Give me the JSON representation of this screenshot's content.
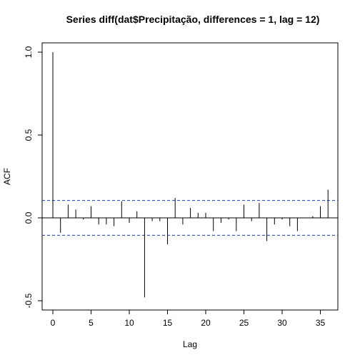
{
  "chart_data": {
    "type": "bar",
    "title": "Series  diff(dat$Precipitação, differences = 1, lag = 12)",
    "xlabel": "Lag",
    "ylabel": "ACF",
    "xlim": [
      0,
      36
    ],
    "ylim": [
      -0.5,
      1.0
    ],
    "x_ticks": [
      0,
      5,
      10,
      15,
      20,
      25,
      30,
      35
    ],
    "y_ticks": [
      -0.5,
      0.0,
      0.5,
      1.0
    ],
    "confidence_band": [
      -0.105,
      0.105
    ],
    "ci_color": "#1f3fbf",
    "lags": [
      0,
      1,
      2,
      3,
      4,
      5,
      6,
      7,
      8,
      9,
      10,
      11,
      12,
      13,
      14,
      15,
      16,
      17,
      18,
      19,
      20,
      21,
      22,
      23,
      24,
      25,
      26,
      27,
      28,
      29,
      30,
      31,
      32,
      33,
      34,
      35,
      36
    ],
    "values": [
      1.0,
      -0.09,
      0.08,
      0.05,
      -0.01,
      0.07,
      -0.04,
      -0.04,
      -0.05,
      0.1,
      -0.03,
      0.04,
      -0.48,
      -0.02,
      -0.02,
      -0.16,
      0.12,
      -0.04,
      0.06,
      0.03,
      0.03,
      -0.08,
      -0.03,
      -0.01,
      -0.08,
      0.08,
      -0.02,
      0.09,
      -0.14,
      -0.04,
      -0.01,
      -0.05,
      -0.08,
      0.0,
      0.01,
      0.07,
      0.17
    ]
  }
}
